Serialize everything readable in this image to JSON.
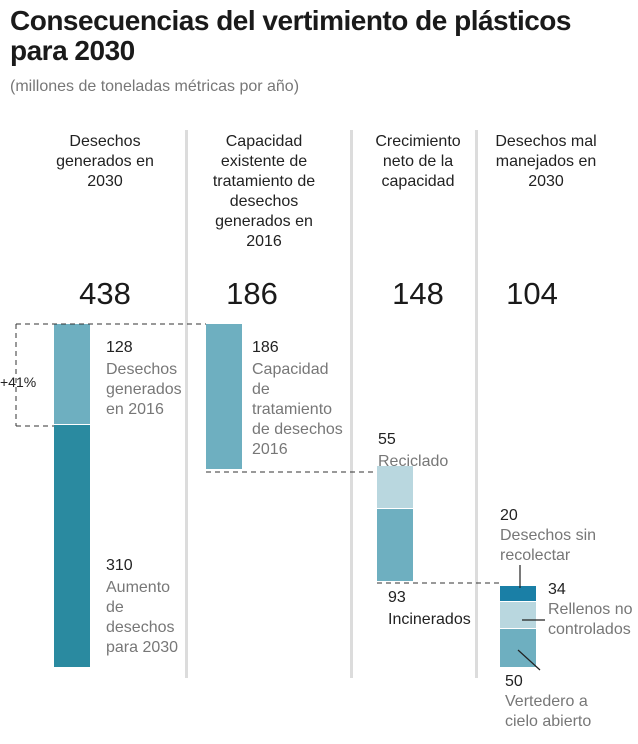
{
  "title": "Consecuencias del vertimiento de plásticos para 2030",
  "subtitle": "(millones de toneladas métricas por año)",
  "columns": [
    {
      "heading": "Desechos generados en 2030",
      "total": "438"
    },
    {
      "heading": "Capacidad existente de tratamiento de desechos generados en 2016",
      "total": "186"
    },
    {
      "heading": "Crecimiento neto de la capacidad",
      "total": "148"
    },
    {
      "heading": "Desechos mal manejados en 2030",
      "total": "104"
    }
  ],
  "percent_label": "+41%",
  "colors": {
    "light_teal": "#6eafc0",
    "dark_teal": "#2a8aa0",
    "pale_teal": "#b9d7df",
    "deep_blue": "#1a7fa6"
  },
  "chart_data": {
    "type": "waterfall",
    "title": "Consecuencias del vertimiento de plásticos para 2030",
    "subtitle": "(millones de toneladas métricas por año)",
    "unit": "millones de toneladas métricas por año",
    "totals": {
      "desechos_generados_2030": 438,
      "capacidad_existente_2016": 186,
      "crecimiento_neto_capacidad": 148,
      "desechos_mal_manejados_2030": 104
    },
    "segments": [
      {
        "column": 0,
        "value": 128,
        "label": "Desechos generados en 2016",
        "color": "light_teal"
      },
      {
        "column": 0,
        "value": 310,
        "label": "Aumento de desechos para 2030",
        "color": "dark_teal"
      },
      {
        "column": 1,
        "value": 186,
        "label": "Capacidad de tratamiento de desechos 2016",
        "color": "light_teal"
      },
      {
        "column": 2,
        "value": 55,
        "label": "Reciclado",
        "color": "pale_teal"
      },
      {
        "column": 2,
        "value": 93,
        "label": "Incinerados",
        "color": "light_teal"
      },
      {
        "column": 3,
        "value": 20,
        "label": "Desechos sin recolectar",
        "color": "deep_blue"
      },
      {
        "column": 3,
        "value": 34,
        "label": "Rellenos no controlados",
        "color": "pale_teal"
      },
      {
        "column": 3,
        "value": 50,
        "label": "Vertedero a cielo abierto",
        "color": "light_teal"
      }
    ],
    "growth_annotation": "+41%"
  }
}
